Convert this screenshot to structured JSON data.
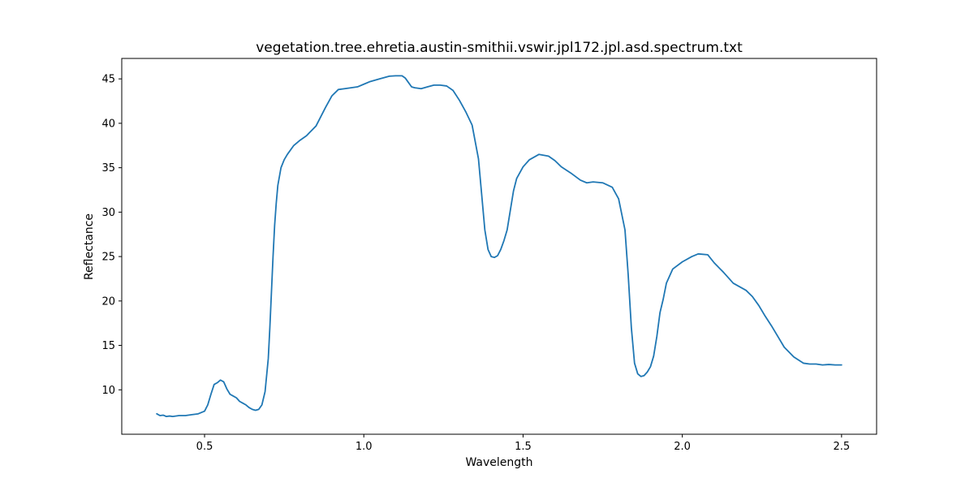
{
  "chart_data": {
    "type": "line",
    "title": "vegetation.tree.ehretia.austin-smithii.vswir.jpl172.jpl.asd.spectrum.txt",
    "xlabel": "Wavelength",
    "ylabel": "Reflectance",
    "xlim": [
      0.24,
      2.61
    ],
    "ylim": [
      5.0,
      47.3
    ],
    "xticks": [
      0.5,
      1.0,
      1.5,
      2.0,
      2.5
    ],
    "xtick_labels": [
      "0.5",
      "1.0",
      "1.5",
      "2.0",
      "2.5"
    ],
    "yticks": [
      10,
      15,
      20,
      25,
      30,
      35,
      40,
      45
    ],
    "ytick_labels": [
      "10",
      "15",
      "20",
      "25",
      "30",
      "35",
      "40",
      "45"
    ],
    "grid": false,
    "series": [
      {
        "color": "#1f77b4",
        "x": [
          0.35,
          0.36,
          0.37,
          0.38,
          0.39,
          0.4,
          0.42,
          0.44,
          0.46,
          0.48,
          0.5,
          0.51,
          0.52,
          0.53,
          0.54,
          0.55,
          0.56,
          0.57,
          0.58,
          0.59,
          0.6,
          0.61,
          0.62,
          0.63,
          0.64,
          0.65,
          0.66,
          0.67,
          0.68,
          0.69,
          0.7,
          0.705,
          0.71,
          0.715,
          0.72,
          0.725,
          0.73,
          0.74,
          0.75,
          0.76,
          0.78,
          0.8,
          0.82,
          0.85,
          0.88,
          0.9,
          0.92,
          0.94,
          0.96,
          0.98,
          1.0,
          1.02,
          1.05,
          1.08,
          1.1,
          1.12,
          1.13,
          1.14,
          1.15,
          1.16,
          1.18,
          1.2,
          1.22,
          1.24,
          1.26,
          1.28,
          1.3,
          1.32,
          1.34,
          1.36,
          1.37,
          1.38,
          1.39,
          1.4,
          1.41,
          1.42,
          1.43,
          1.44,
          1.45,
          1.46,
          1.47,
          1.48,
          1.5,
          1.52,
          1.55,
          1.58,
          1.6,
          1.62,
          1.65,
          1.68,
          1.7,
          1.72,
          1.75,
          1.78,
          1.8,
          1.82,
          1.83,
          1.84,
          1.85,
          1.86,
          1.87,
          1.88,
          1.89,
          1.9,
          1.91,
          1.92,
          1.93,
          1.94,
          1.95,
          1.97,
          2.0,
          2.03,
          2.05,
          2.08,
          2.1,
          2.13,
          2.16,
          2.2,
          2.22,
          2.24,
          2.26,
          2.28,
          2.3,
          2.32,
          2.35,
          2.38,
          2.4,
          2.42,
          2.44,
          2.46,
          2.48,
          2.5
        ],
        "y": [
          7.3,
          7.1,
          7.15,
          7.0,
          7.05,
          7.0,
          7.1,
          7.1,
          7.2,
          7.3,
          7.6,
          8.3,
          9.5,
          10.6,
          10.8,
          11.1,
          10.9,
          10.1,
          9.5,
          9.3,
          9.1,
          8.7,
          8.5,
          8.3,
          8.0,
          7.8,
          7.7,
          7.8,
          8.3,
          9.8,
          13.5,
          17.0,
          21.0,
          25.0,
          28.5,
          31.0,
          33.0,
          35.0,
          35.9,
          36.5,
          37.5,
          38.1,
          38.6,
          39.7,
          41.8,
          43.1,
          43.8,
          43.9,
          44.0,
          44.1,
          44.4,
          44.7,
          45.0,
          45.3,
          45.35,
          45.35,
          45.1,
          44.6,
          44.1,
          44.0,
          43.9,
          44.1,
          44.3,
          44.3,
          44.2,
          43.7,
          42.6,
          41.3,
          39.8,
          36.0,
          32.0,
          28.0,
          25.8,
          25.0,
          24.9,
          25.1,
          25.8,
          26.8,
          28.0,
          30.2,
          32.4,
          33.8,
          35.1,
          35.9,
          36.5,
          36.3,
          35.8,
          35.1,
          34.4,
          33.6,
          33.3,
          33.4,
          33.3,
          32.8,
          31.5,
          28.0,
          23.0,
          17.0,
          13.0,
          11.8,
          11.5,
          11.6,
          12.0,
          12.6,
          13.8,
          16.0,
          18.7,
          20.2,
          22.0,
          23.6,
          24.4,
          25.0,
          25.3,
          25.2,
          24.3,
          23.2,
          22.0,
          21.2,
          20.5,
          19.5,
          18.3,
          17.2,
          16.0,
          14.8,
          13.7,
          13.0,
          12.9,
          12.9,
          12.8,
          12.85,
          12.8,
          12.8
        ]
      }
    ]
  }
}
